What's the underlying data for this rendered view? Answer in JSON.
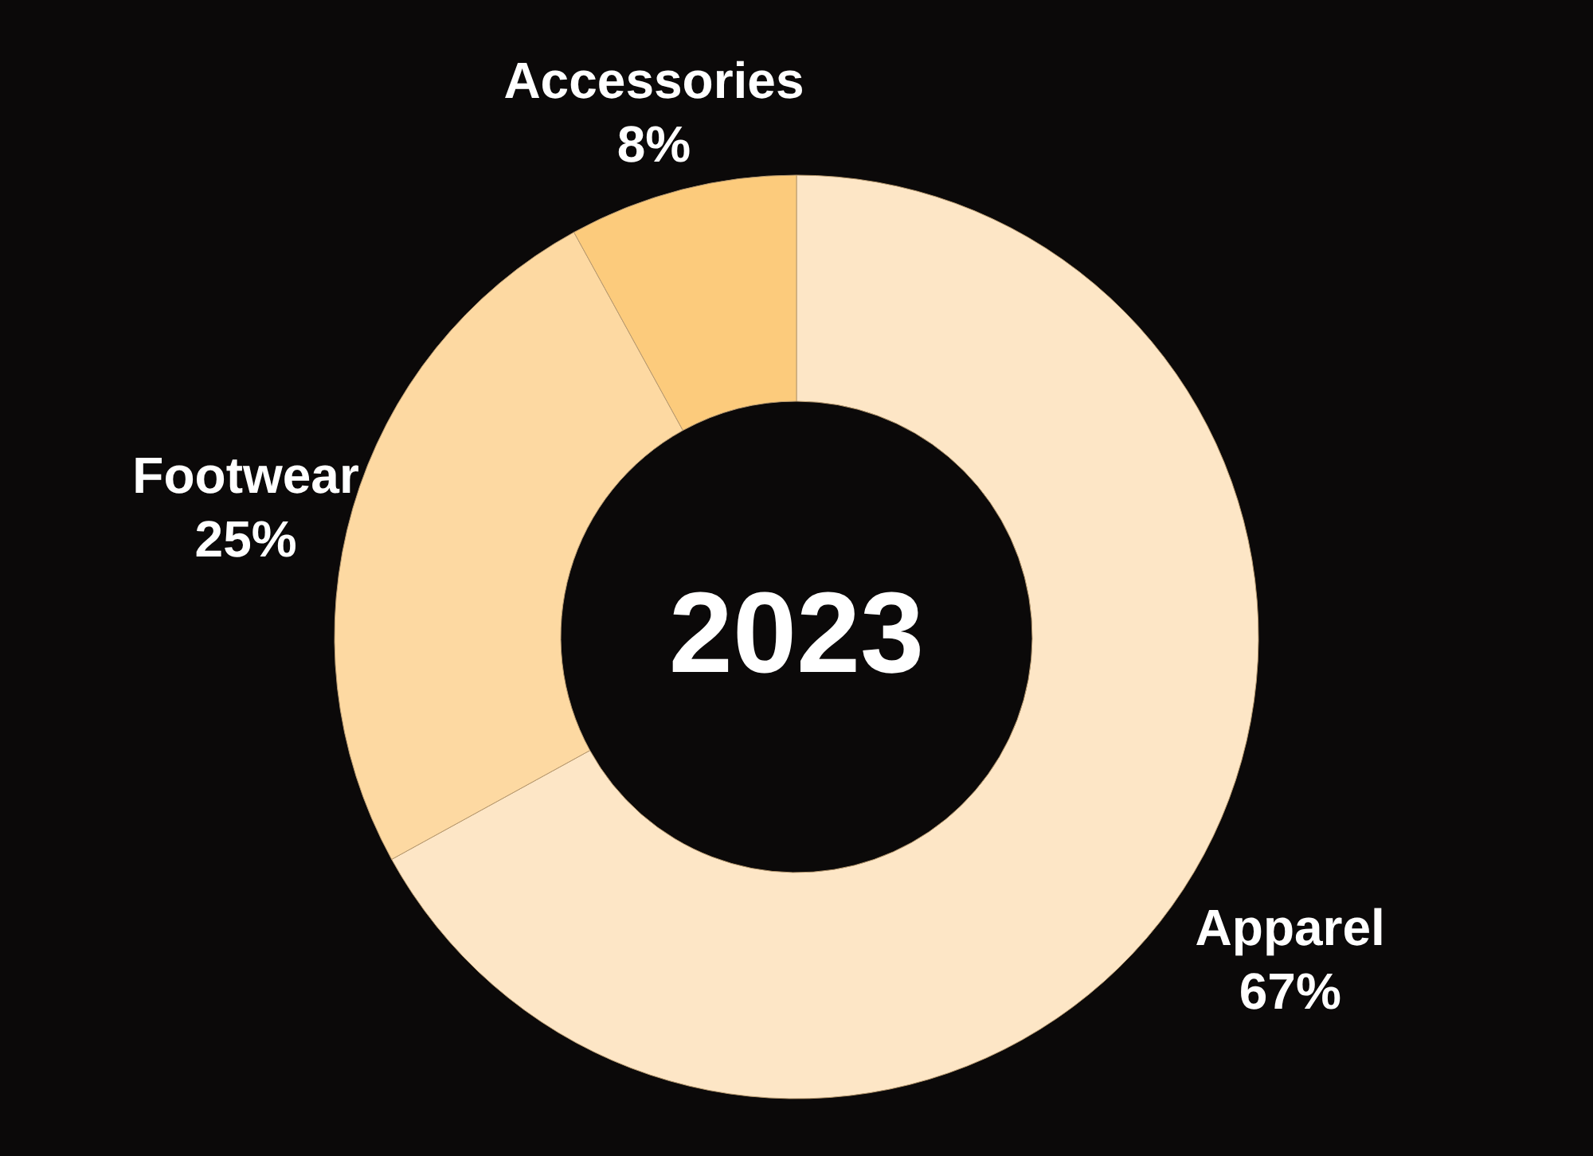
{
  "chart_data": {
    "type": "donut",
    "title": "2023",
    "categories": [
      "Apparel",
      "Footwear",
      "Accessories"
    ],
    "values": [
      67,
      25,
      8
    ],
    "value_labels": [
      "67%",
      "25%",
      "8%"
    ],
    "colors": [
      "#fde6c6",
      "#fdd9a2",
      "#fccb7c"
    ]
  }
}
